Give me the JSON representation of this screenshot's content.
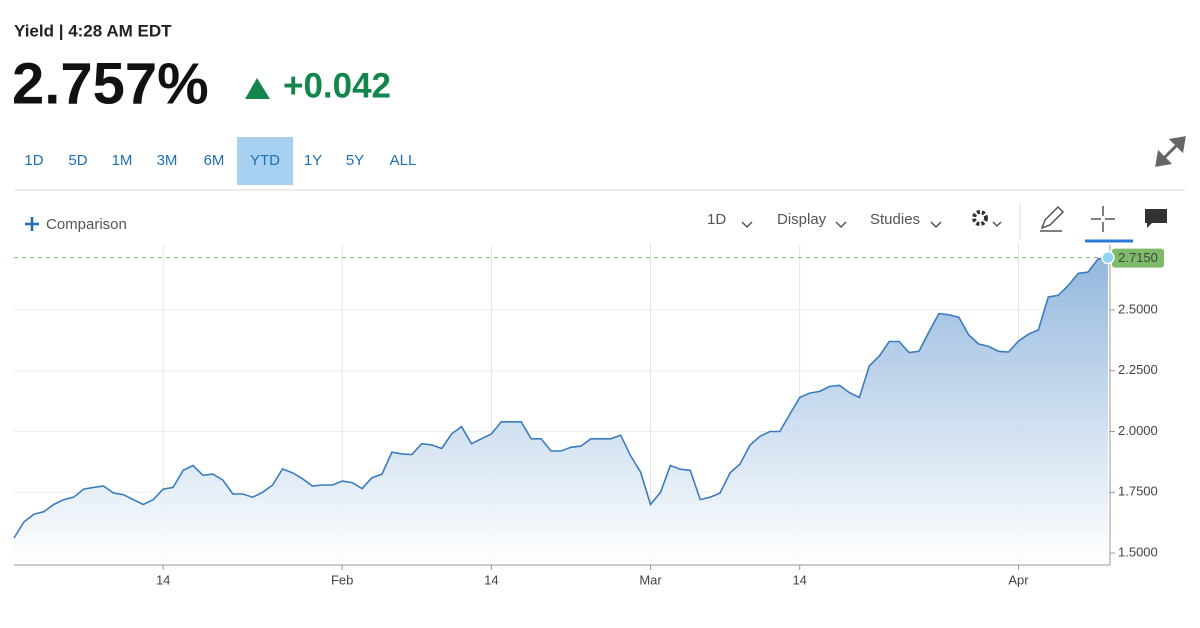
{
  "header": {
    "title": "Yield | 4:28 AM EDT",
    "price": "2.757%",
    "change": "+0.042"
  },
  "ranges": {
    "items": [
      "1D",
      "5D",
      "1M",
      "3M",
      "6M",
      "YTD",
      "1Y",
      "5Y",
      "ALL"
    ],
    "selected": "YTD"
  },
  "toolbar": {
    "comparison": "Comparison",
    "interval": "1D",
    "display": "Display",
    "studies": "Studies"
  },
  "chart_data": {
    "type": "line",
    "area": true,
    "color": "#3a7dbf",
    "grid": true,
    "categories": [
      null,
      null,
      null,
      null,
      null,
      null,
      null,
      null,
      null,
      null,
      null,
      null,
      null,
      null,
      null,
      "14",
      null,
      null,
      null,
      null,
      null,
      null,
      null,
      null,
      null,
      null,
      null,
      null,
      null,
      null,
      null,
      null,
      null,
      "Feb",
      null,
      null,
      null,
      null,
      null,
      null,
      null,
      null,
      null,
      null,
      null,
      null,
      null,
      null,
      "14",
      null,
      null,
      null,
      null,
      null,
      null,
      null,
      null,
      null,
      null,
      null,
      null,
      null,
      null,
      null,
      "Mar",
      null,
      null,
      null,
      null,
      null,
      null,
      null,
      null,
      null,
      null,
      null,
      null,
      null,
      null,
      "14",
      null,
      null,
      null,
      null,
      null,
      null,
      null,
      null,
      null,
      null,
      null,
      null,
      null,
      null,
      null,
      null,
      null,
      null,
      null,
      null,
      null,
      "Apr",
      null,
      null,
      null,
      null,
      null,
      null,
      null,
      null,
      null
    ],
    "values": [
      1.562,
      1.628,
      1.66,
      1.67,
      1.7,
      1.72,
      1.73,
      1.763,
      1.77,
      1.776,
      1.747,
      1.74,
      1.72,
      1.7,
      1.72,
      1.763,
      1.77,
      1.84,
      1.86,
      1.82,
      1.825,
      1.8,
      1.743,
      1.743,
      1.73,
      1.75,
      1.78,
      1.846,
      1.83,
      1.806,
      1.776,
      1.78,
      1.78,
      1.796,
      1.79,
      1.765,
      1.81,
      1.825,
      1.915,
      1.908,
      1.905,
      1.95,
      1.945,
      1.93,
      1.99,
      2.02,
      1.95,
      1.97,
      1.99,
      2.04,
      2.04,
      2.04,
      1.97,
      1.97,
      1.92,
      1.92,
      1.935,
      1.94,
      1.97,
      1.97,
      1.97,
      1.985,
      1.9,
      1.833,
      1.7,
      1.75,
      1.86,
      1.845,
      1.84,
      1.72,
      1.73,
      1.747,
      1.83,
      1.866,
      1.944,
      1.98,
      2.0,
      2.0,
      2.07,
      2.14,
      2.158,
      2.165,
      2.185,
      2.19,
      2.16,
      2.14,
      2.27,
      2.31,
      2.37,
      2.37,
      2.325,
      2.33,
      2.41,
      2.485,
      2.48,
      2.47,
      2.397,
      2.36,
      2.35,
      2.33,
      2.327,
      2.372,
      2.4,
      2.418,
      2.553,
      2.56,
      2.6,
      2.65,
      2.656,
      2.71,
      2.715
    ],
    "ylim": [
      1.451,
      2.767
    ],
    "yticks": [
      {
        "value": 1.5,
        "label": "1.5000"
      },
      {
        "value": 1.75,
        "label": "1.7500"
      },
      {
        "value": 2.0,
        "label": "2.0000"
      },
      {
        "value": 2.25,
        "label": "2.2500"
      },
      {
        "value": 2.5,
        "label": "2.5000"
      }
    ],
    "annotations": [
      {
        "value": 2.715,
        "label": "2.7150",
        "color": "#7dbb6a"
      }
    ]
  }
}
